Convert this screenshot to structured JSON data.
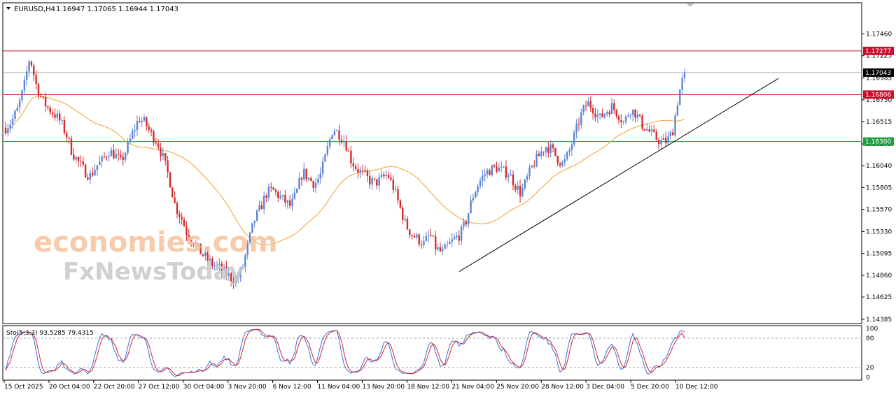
{
  "header": {
    "symbol_label": "EURUSD,H4",
    "ohlc": "1.16947 1.17065 1.16944 1.17043"
  },
  "watermark": {
    "line1": "economies.com",
    "line2": "FxNewsToday"
  },
  "chart_data": {
    "type": "candlestick",
    "symbol": "EURUSD",
    "timeframe": "H4",
    "ylim": [
      1.14385,
      1.1775
    ],
    "price_ticks": [
      1.1746,
      1.17225,
      1.16985,
      1.1675,
      1.16515,
      1.16275,
      1.1604,
      1.15805,
      1.1557,
      1.1533,
      1.15095,
      1.1486,
      1.14625,
      1.14385
    ],
    "time_labels": [
      "15 Oct 2025",
      "20 Oct 04:00",
      "22 Oct 20:00",
      "27 Oct 12:00",
      "30 Oct 04:00",
      "3 Nov 20:00",
      "6 Nov 12:00",
      "11 Nov 04:00",
      "13 Nov 20:00",
      "18 Nov 12:00",
      "21 Nov 04:00",
      "25 Nov 20:00",
      "28 Nov 12:00",
      "3 Dec 04:00",
      "5 Dec 20:00",
      "10 Dec 12:00"
    ],
    "horizontal_levels": [
      {
        "price": 1.17277,
        "label": "1.17277",
        "color": "#c8102e"
      },
      {
        "price": 1.16806,
        "label": "1.16806",
        "color": "#c8102e"
      },
      {
        "price": 1.163,
        "label": "1.16300",
        "color": "#1e9e3e"
      }
    ],
    "current_price": {
      "price": 1.17043,
      "label": "1.17043",
      "color": "#000000"
    },
    "trendline": {
      "from": {
        "time": "21 Nov 04:00",
        "price": 1.149
      },
      "to": {
        "time": "12 Dec",
        "price": 1.1698
      },
      "color": "#000000"
    },
    "moving_average": {
      "color": "#f0a030"
    },
    "price_path": [
      1.1645,
      1.1652,
      1.1665,
      1.1688,
      1.1722,
      1.1692,
      1.1675,
      1.1666,
      1.166,
      1.1652,
      1.1638,
      1.1618,
      1.1608,
      1.1598,
      1.1593,
      1.1604,
      1.161,
      1.162,
      1.1616,
      1.1608,
      1.1622,
      1.164,
      1.1655,
      1.165,
      1.1638,
      1.163,
      1.1612,
      1.159,
      1.156,
      1.1548,
      1.153,
      1.1522,
      1.1512,
      1.1505,
      1.1498,
      1.1495,
      1.149,
      1.1484,
      1.148,
      1.1492,
      1.152,
      1.1545,
      1.1558,
      1.1574,
      1.1578,
      1.1572,
      1.1566,
      1.156,
      1.1575,
      1.1598,
      1.159,
      1.1584,
      1.1595,
      1.162,
      1.1645,
      1.1638,
      1.163,
      1.161,
      1.16,
      1.1595,
      1.1588,
      1.1585,
      1.159,
      1.1595,
      1.158,
      1.156,
      1.154,
      1.153,
      1.1525,
      1.152,
      1.153,
      1.1515,
      1.151,
      1.1518,
      1.1525,
      1.153,
      1.1545,
      1.157,
      1.1585,
      1.1595,
      1.16,
      1.1602,
      1.1598,
      1.1596,
      1.1584,
      1.1574,
      1.159,
      1.1605,
      1.1615,
      1.1625,
      1.1622,
      1.1612,
      1.1605,
      1.162,
      1.164,
      1.166,
      1.1672,
      1.1665,
      1.1655,
      1.1662,
      1.1668,
      1.166,
      1.165,
      1.1665,
      1.166,
      1.1648,
      1.1642,
      1.1635,
      1.163,
      1.163,
      1.164,
      1.168,
      1.1705
    ],
    "stochastic": {
      "label": "Sto(5,3,3) 93.5285 79.4315",
      "main": 93.5285,
      "signal": 79.4315,
      "levels": [
        80,
        20
      ],
      "ylim": [
        0,
        100
      ],
      "tick_labels": [
        "100",
        "80",
        "20",
        "0"
      ],
      "main_color": "#3a70d6",
      "signal_color": "#d6232f"
    }
  }
}
